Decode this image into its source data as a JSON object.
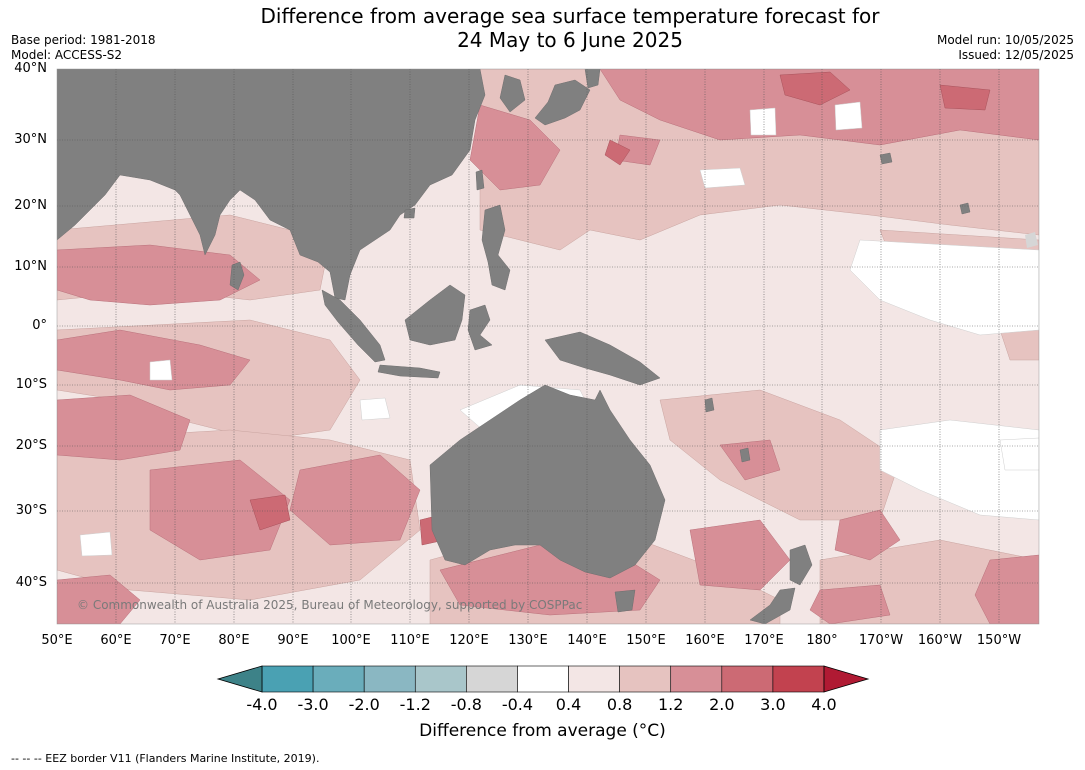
{
  "title_line1": "Difference from average sea surface temperature forecast for",
  "title_line2": "24 May to 6 June 2025",
  "meta_left": {
    "base_period": "Base period: 1981-2018",
    "model": "Model: ACCESS-S2"
  },
  "meta_right": {
    "model_run": "Model run: 10/05/2025",
    "issued": "Issued: 12/05/2025"
  },
  "lat_labels": [
    "40°N",
    "30°N",
    "20°N",
    "10°N",
    "0°",
    "10°S",
    "20°S",
    "30°S",
    "40°S"
  ],
  "lon_labels": [
    "50°E",
    "60°E",
    "70°E",
    "80°E",
    "90°E",
    "100°E",
    "110°E",
    "120°E",
    "130°E",
    "140°E",
    "150°E",
    "160°E",
    "170°E",
    "180°",
    "170°W",
    "160°W",
    "150°W"
  ],
  "copyright": "© Commonwealth of Australia 2025, Bureau of Meteorology, supported by COSPPac",
  "colorbar": {
    "ticks": [
      "-4.0",
      "-3.0",
      "-2.0",
      "-1.2",
      "-0.8",
      "-0.4",
      "0.4",
      "0.8",
      "1.2",
      "2.0",
      "3.0",
      "4.0"
    ],
    "colors": [
      "#3d8288",
      "#4aa1b3",
      "#6aadbb",
      "#8ab7c2",
      "#a9c6ca",
      "#d6d6d6",
      "#ffffff",
      "#f3e6e5",
      "#e6c3c0",
      "#d78f97",
      "#cc6a74",
      "#c2424f"
    ],
    "low_color": "#3d8288",
    "high_color": "#b01a33",
    "label": "Difference from average (°C)"
  },
  "footnote": "-- -- -- EEZ border V11 (Flanders Marine Institute, 2019).",
  "colors": {
    "land": "#808080",
    "ocean_base": "#f3e6e5",
    "warm_1": "#e6c3c0",
    "warm_2": "#d78f97",
    "warm_3": "#cc6a74",
    "neutral": "#ffffff"
  }
}
